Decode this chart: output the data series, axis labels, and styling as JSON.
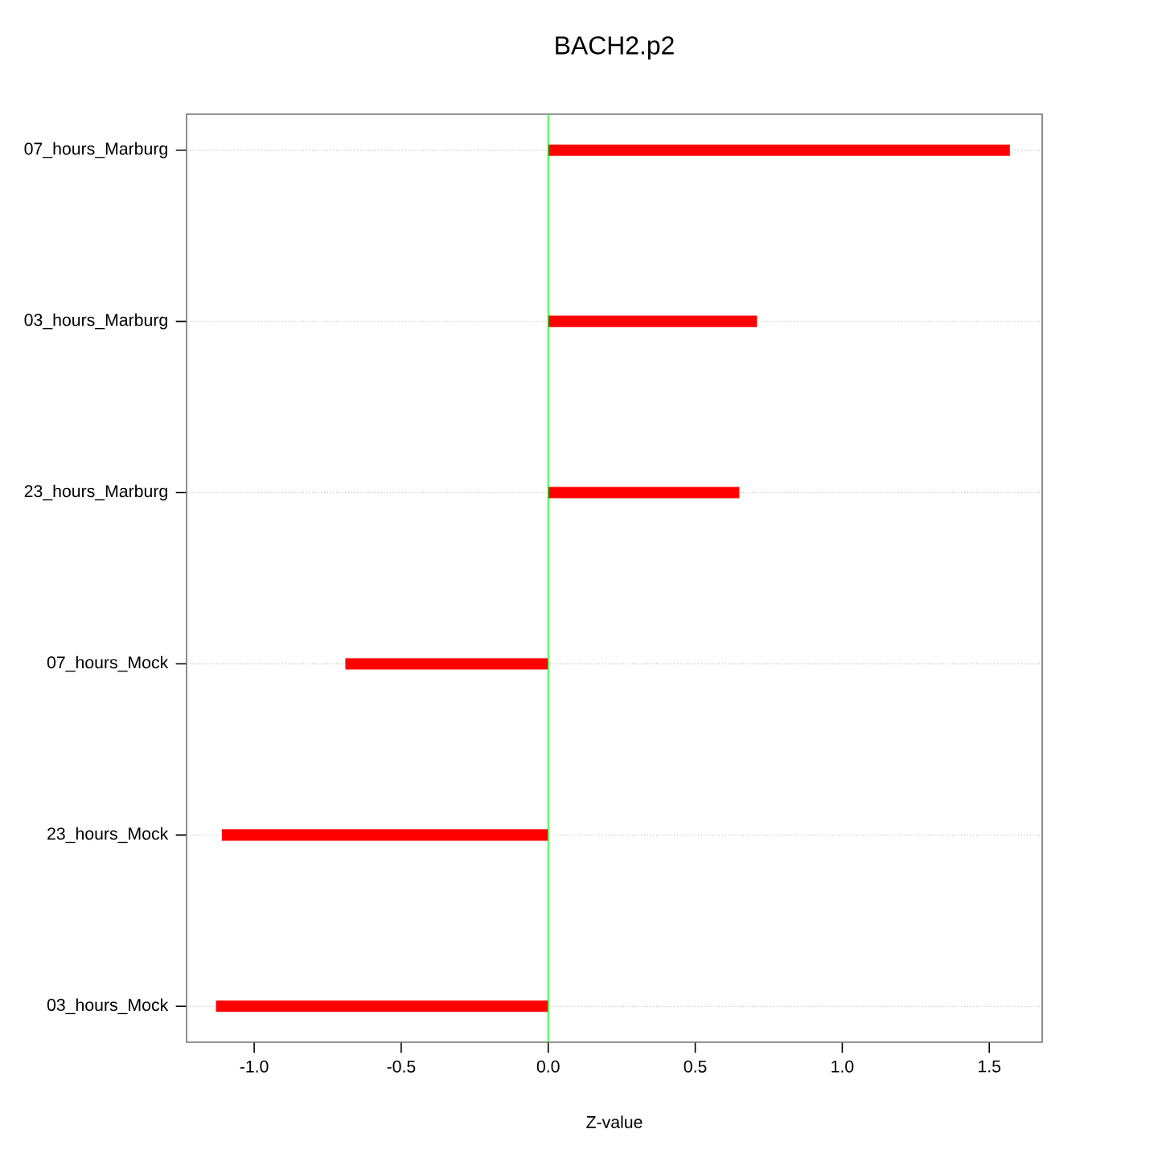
{
  "chart_data": {
    "type": "bar",
    "orientation": "horizontal",
    "title": "BACH2.p2",
    "xlabel": "Z-value",
    "categories": [
      "07_hours_Marburg",
      "03_hours_Marburg",
      "23_hours_Marburg",
      "07_hours_Mock",
      "23_hours_Mock",
      "03_hours_Mock"
    ],
    "values": [
      1.57,
      0.71,
      0.65,
      -0.69,
      -1.11,
      -1.13
    ],
    "color": "#ff0000",
    "xlim": [
      -1.23,
      1.68
    ],
    "xticks": [
      {
        "value": -1,
        "label": "-1.0"
      },
      -0.5,
      {
        "value": 0,
        "label": "0.0"
      },
      0.5,
      {
        "value": 1,
        "label": "1.0"
      },
      1.5
    ],
    "grid": "y",
    "ref_lines": [
      {
        "axis": "x",
        "value": 0,
        "color": "#00ff00"
      }
    ]
  }
}
